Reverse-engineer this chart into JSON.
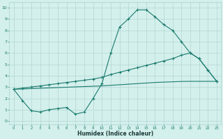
{
  "xlabel": "Humidex (Indice chaleur)",
  "xlim": [
    -0.5,
    23.5
  ],
  "ylim": [
    -0.3,
    10.5
  ],
  "xticks": [
    0,
    1,
    2,
    3,
    4,
    5,
    6,
    7,
    8,
    9,
    10,
    11,
    12,
    13,
    14,
    15,
    16,
    17,
    18,
    19,
    20,
    21,
    22,
    23
  ],
  "yticks": [
    0,
    1,
    2,
    3,
    4,
    5,
    6,
    7,
    8,
    9,
    10
  ],
  "line_color": "#1a7a6e",
  "bg_color": "#d4f0ec",
  "grid_color": "#aacfcc",
  "line1_x": [
    0,
    1,
    2,
    3,
    4,
    5,
    6,
    7,
    8,
    9,
    10,
    11,
    12,
    13,
    14,
    15,
    16,
    17,
    18,
    19,
    20,
    21,
    22,
    23
  ],
  "line1_y": [
    2.8,
    1.8,
    0.9,
    0.8,
    1.0,
    1.1,
    1.2,
    0.6,
    0.8,
    2.0,
    3.3,
    6.0,
    8.3,
    9.0,
    9.8,
    9.8,
    9.2,
    8.5,
    8.0,
    7.0,
    6.0,
    5.5,
    4.5,
    3.5
  ],
  "line2_x": [
    0,
    23
  ],
  "line2_y": [
    2.8,
    3.5
  ],
  "line2_full_x": [
    0,
    1,
    2,
    3,
    4,
    5,
    6,
    7,
    8,
    9,
    10,
    11,
    12,
    13,
    14,
    15,
    16,
    17,
    18,
    19,
    20,
    21,
    22,
    23
  ],
  "line2_full_y": [
    2.8,
    2.83,
    2.86,
    2.89,
    2.92,
    2.95,
    2.98,
    3.01,
    3.04,
    3.07,
    3.1,
    3.15,
    3.2,
    3.25,
    3.3,
    3.35,
    3.4,
    3.43,
    3.46,
    3.49,
    3.5,
    3.5,
    3.5,
    3.5
  ],
  "line3_full_x": [
    0,
    1,
    2,
    3,
    4,
    5,
    6,
    7,
    8,
    9,
    10,
    11,
    12,
    13,
    14,
    15,
    16,
    17,
    18,
    19,
    20,
    21,
    22,
    23
  ],
  "line3_full_y": [
    2.8,
    2.9,
    3.0,
    3.1,
    3.2,
    3.3,
    3.4,
    3.5,
    3.6,
    3.7,
    3.85,
    4.1,
    4.3,
    4.5,
    4.7,
    4.9,
    5.1,
    5.3,
    5.5,
    5.8,
    6.0,
    5.5,
    4.5,
    3.5
  ]
}
